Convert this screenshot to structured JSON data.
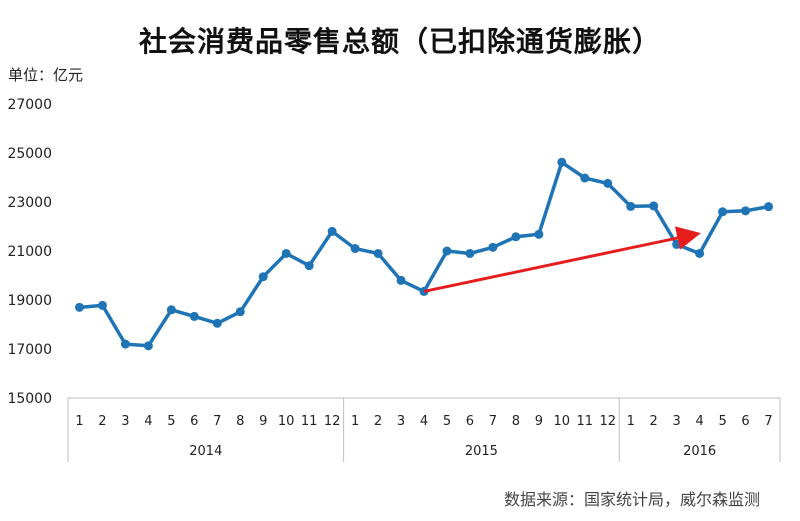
{
  "title": "社会消费品零售总额（已扣除通货膨胀）",
  "unit_label": "单位：亿元",
  "source": "数据来源：国家统计局，威尔森监测",
  "colors": {
    "line": "#1f74b6",
    "arrow": "#e61d1d",
    "axis": "#bfbfbf"
  },
  "chart_data": {
    "type": "line",
    "title": "社会消费品零售总额（已扣除通货膨胀）",
    "ylabel": "单位：亿元",
    "ylim": [
      15000,
      27000
    ],
    "yticks": [
      15000,
      17000,
      19000,
      21000,
      23000,
      25000,
      27000
    ],
    "grid": false,
    "categories": [
      "1",
      "2",
      "3",
      "4",
      "5",
      "6",
      "7",
      "8",
      "9",
      "10",
      "11",
      "12",
      "1",
      "2",
      "3",
      "4",
      "5",
      "6",
      "7",
      "8",
      "9",
      "10",
      "11",
      "12",
      "1",
      "2",
      "3",
      "4",
      "5",
      "6",
      "7"
    ],
    "groups": [
      {
        "label": "2014",
        "start": 0,
        "count": 12
      },
      {
        "label": "2015",
        "start": 12,
        "count": 12
      },
      {
        "label": "2016",
        "start": 24,
        "count": 7
      }
    ],
    "series": [
      {
        "values": [
          18700,
          18780,
          17200,
          17130,
          18600,
          18330,
          18050,
          18520,
          19950,
          20900,
          20400,
          21800,
          21100,
          20900,
          19800,
          19350,
          21000,
          20900,
          21150,
          21580,
          21680,
          24620,
          23980,
          23760,
          22820,
          22840,
          21270,
          20900,
          22600,
          22640,
          22810
        ]
      }
    ],
    "annotations": [
      {
        "type": "arrow",
        "from": {
          "index": 15,
          "value": 19350
        },
        "to": {
          "index": 26.8,
          "value": 21680
        }
      }
    ]
  }
}
